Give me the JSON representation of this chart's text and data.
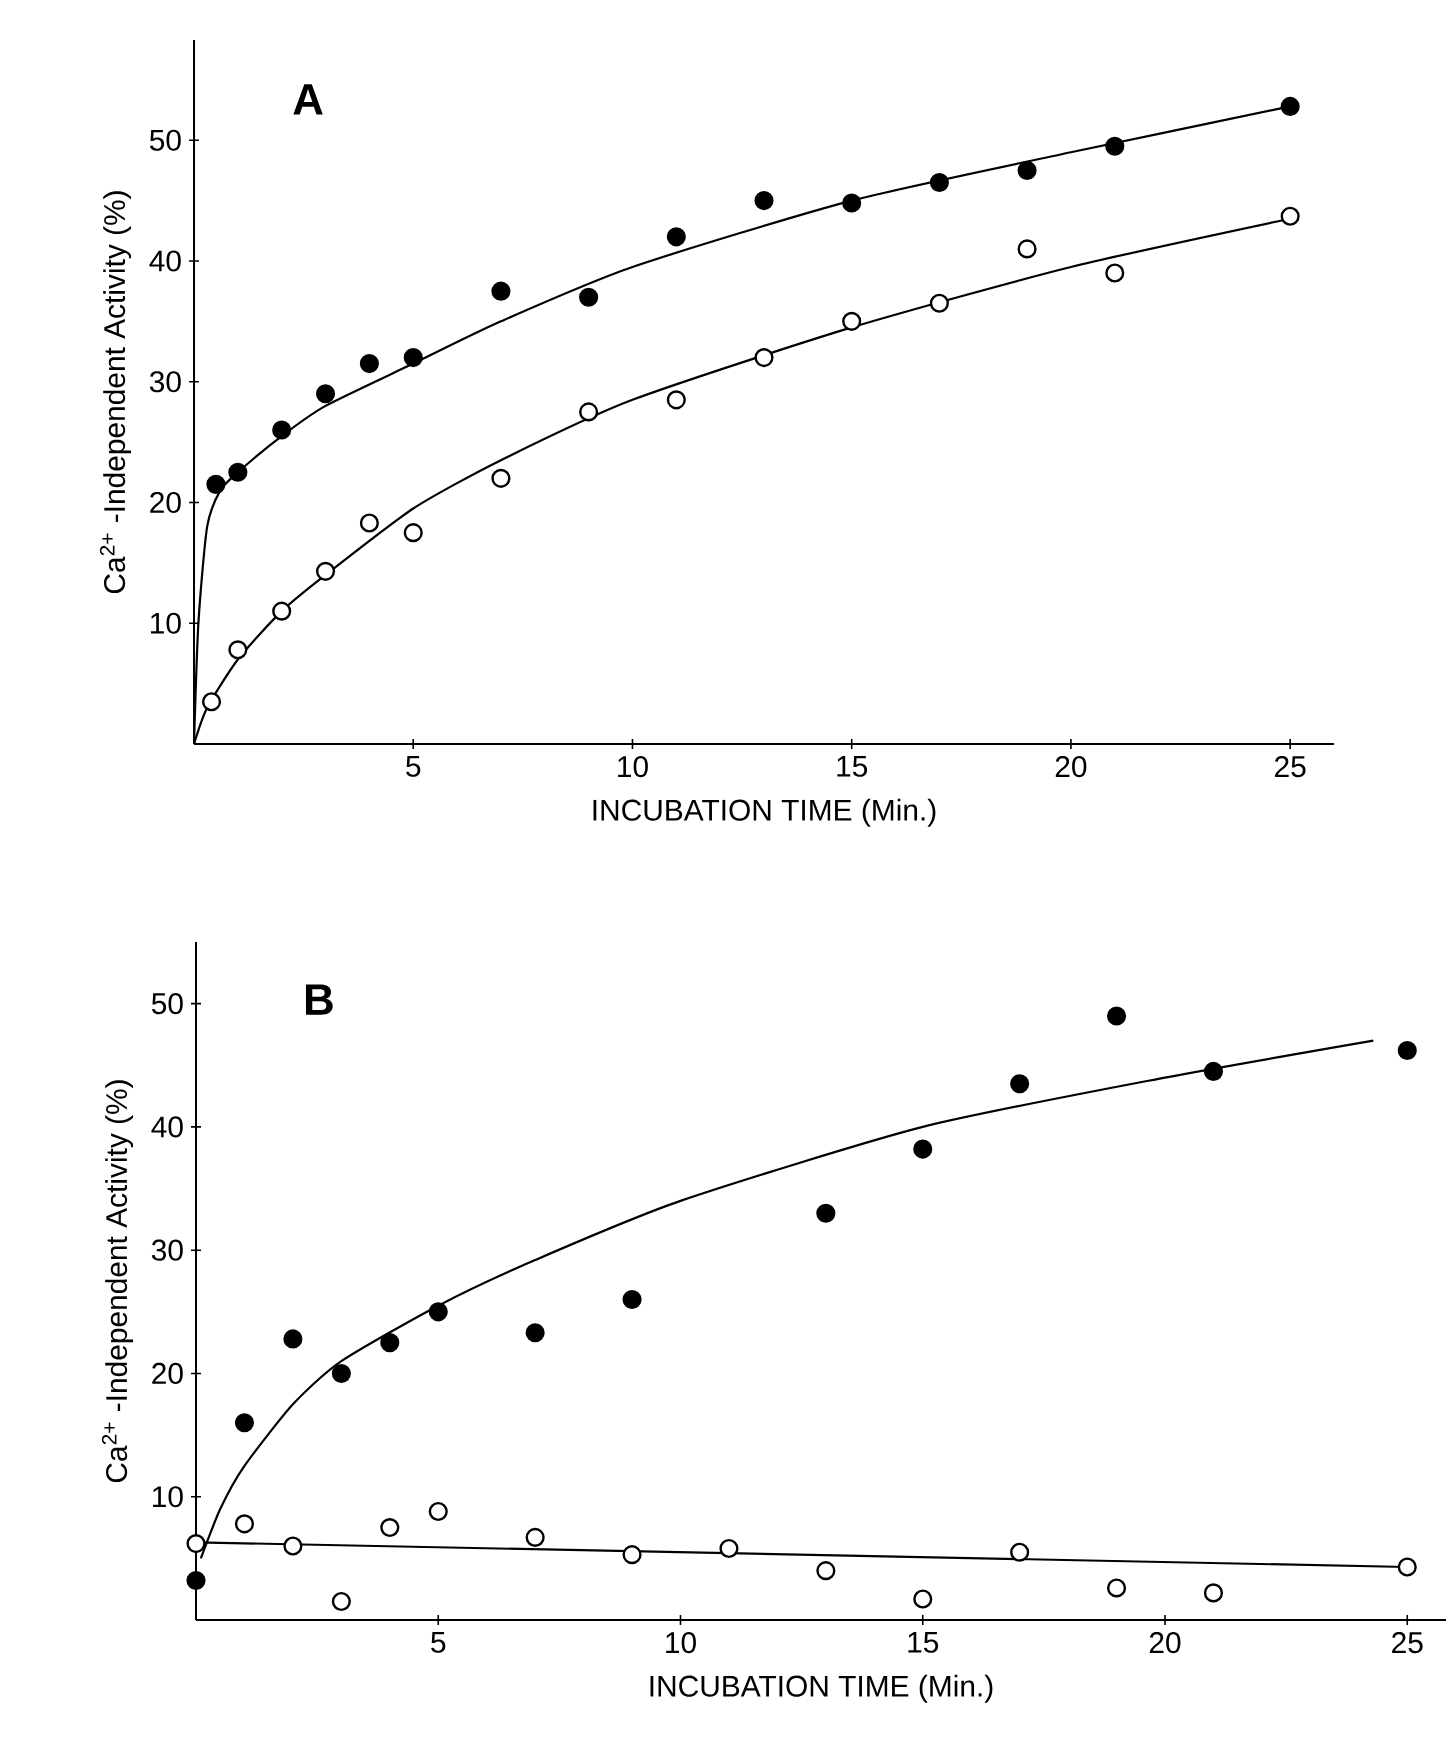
{
  "chart_data": [
    {
      "type": "scatter",
      "title": "A",
      "xlabel": "INCUBATION TIME (Min.)",
      "ylabel": "Ca$^{2+}$ -Independent Activity (%)",
      "xlim": [
        0,
        26
      ],
      "ylim": [
        0,
        58.3
      ],
      "xticks": [
        5,
        10,
        15,
        20,
        25
      ],
      "yticks": [
        10,
        20,
        30,
        40,
        50
      ],
      "series": [
        {
          "color": "#000000",
          "x": [
            0.5,
            1,
            2,
            3,
            4,
            5,
            7,
            9,
            11,
            13,
            15,
            17,
            19,
            21,
            25
          ],
          "values": [
            21.5,
            22.5,
            26,
            29,
            31.5,
            32,
            37.5,
            37,
            42,
            45,
            44.8,
            46.5,
            47.5,
            49.5,
            52.8
          ]
        },
        {
          "color": "#ffffff",
          "x": [
            0.4,
            1,
            2,
            3,
            4,
            5,
            7,
            9,
            11,
            13,
            15,
            17,
            19,
            21,
            25
          ],
          "values": [
            3.5,
            7.8,
            11,
            14.3,
            18.3,
            17.5,
            22,
            27.5,
            28.5,
            32,
            35,
            36.5,
            41,
            39,
            43.7
          ]
        },
        {
          "type": "line",
          "color": "#000000",
          "x": [
            0,
            0.1,
            0.3,
            0.6,
            1,
            2,
            3,
            5,
            7,
            10,
            15,
            20,
            25
          ],
          "values": [
            0,
            10,
            18,
            21,
            22.5,
            25.5,
            28,
            31.5,
            35,
            39.5,
            45,
            49,
            52.8
          ]
        },
        {
          "type": "line",
          "color": "#000000",
          "x": [
            0,
            0.3,
            1,
            2,
            3,
            5,
            7,
            10,
            15,
            20,
            25
          ],
          "values": [
            0,
            3,
            7,
            11,
            14,
            19.5,
            23.5,
            28.5,
            34.5,
            39.5,
            43.5
          ]
        }
      ]
    },
    {
      "type": "scatter",
      "title": "B",
      "xlabel": "INCUBATION TIME (Min.)",
      "ylabel": "Ca$^{2+}$ -Independent Activity (%)",
      "xlim": [
        0,
        25.8
      ],
      "ylim": [
        0,
        55
      ],
      "xticks": [
        5,
        10,
        15,
        20,
        25
      ],
      "yticks": [
        10,
        20,
        30,
        40,
        50
      ],
      "series": [
        {
          "color": "#000000",
          "x": [
            0,
            1,
            2,
            3,
            4,
            5,
            7,
            9,
            13,
            15,
            17,
            19,
            21,
            25
          ],
          "values": [
            3.2,
            16,
            22.8,
            20,
            22.5,
            25,
            23.3,
            26,
            33,
            38.2,
            43.5,
            49,
            44.5,
            46.2
          ]
        },
        {
          "color": "#ffffff",
          "x": [
            0,
            1,
            2,
            3,
            4,
            5,
            7,
            9,
            11,
            13,
            15,
            17,
            19,
            21,
            25
          ],
          "values": [
            6.2,
            7.8,
            6,
            1.5,
            7.5,
            8.8,
            6.7,
            5.3,
            5.8,
            4,
            1.7,
            5.5,
            2.6,
            2.2,
            4.3
          ]
        },
        {
          "type": "line",
          "color": "#000000",
          "x": [
            0.1,
            0.5,
            1,
            2,
            3,
            5,
            7,
            10,
            15,
            20,
            24.3
          ],
          "values": [
            5,
            9,
            12.5,
            17.5,
            21,
            25.5,
            29.2,
            34,
            40,
            44,
            47
          ]
        },
        {
          "type": "line",
          "color": "#000000",
          "x": [
            0,
            25
          ],
          "values": [
            6.3,
            4.3
          ]
        }
      ]
    }
  ]
}
